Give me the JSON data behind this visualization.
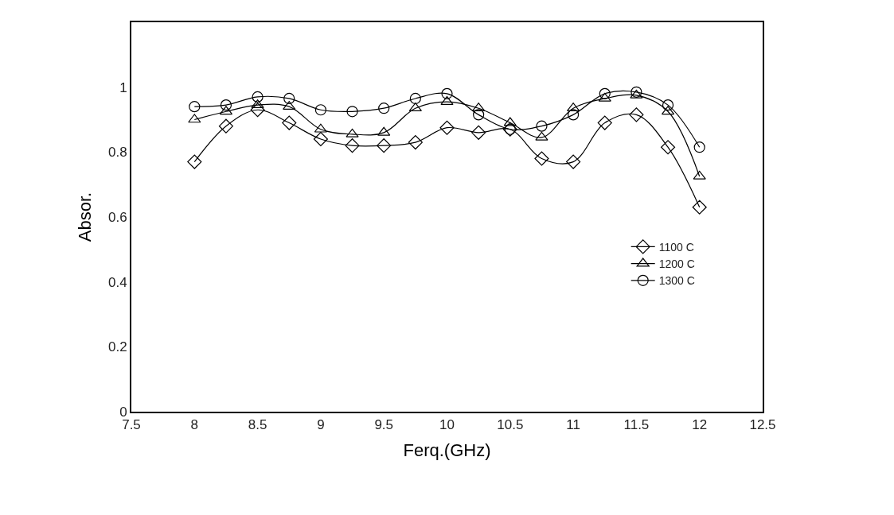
{
  "chart_data": {
    "type": "line",
    "xlabel": "Ferq.(GHz)",
    "ylabel": "Absor.",
    "x": [
      8,
      8.25,
      8.5,
      8.75,
      9,
      9.25,
      9.5,
      9.75,
      10,
      10.25,
      10.5,
      10.75,
      11,
      11.25,
      11.5,
      11.75,
      12
    ],
    "series": [
      {
        "name": "1100 C",
        "color": "#000000",
        "marker": "diamond",
        "values": [
          0.77,
          0.88,
          0.93,
          0.89,
          0.84,
          0.82,
          0.82,
          0.83,
          0.875,
          0.86,
          0.87,
          0.78,
          0.77,
          0.89,
          0.915,
          0.815,
          0.63
        ]
      },
      {
        "name": "1200 C",
        "color": "#000000",
        "marker": "triangle",
        "values": [
          0.9,
          0.925,
          0.945,
          0.94,
          0.87,
          0.855,
          0.86,
          0.935,
          0.955,
          0.935,
          0.89,
          0.845,
          0.935,
          0.965,
          0.975,
          0.925,
          0.725
        ]
      },
      {
        "name": "1300 C",
        "color": "#000000",
        "marker": "circle",
        "values": [
          0.94,
          0.945,
          0.97,
          0.965,
          0.93,
          0.925,
          0.935,
          0.965,
          0.98,
          0.915,
          0.87,
          0.88,
          0.915,
          0.98,
          0.985,
          0.945,
          0.815
        ]
      }
    ],
    "xlim": [
      7.5,
      12.5
    ],
    "xticks": [
      7.5,
      8,
      8.5,
      9,
      9.5,
      10,
      10.5,
      11,
      11.5,
      12,
      12.5
    ],
    "ylim": [
      0,
      1.2
    ],
    "yticks": [
      0,
      0.2,
      0.4,
      0.6,
      0.8,
      1
    ],
    "grid": false,
    "legend": "right",
    "line_style": "solid"
  }
}
